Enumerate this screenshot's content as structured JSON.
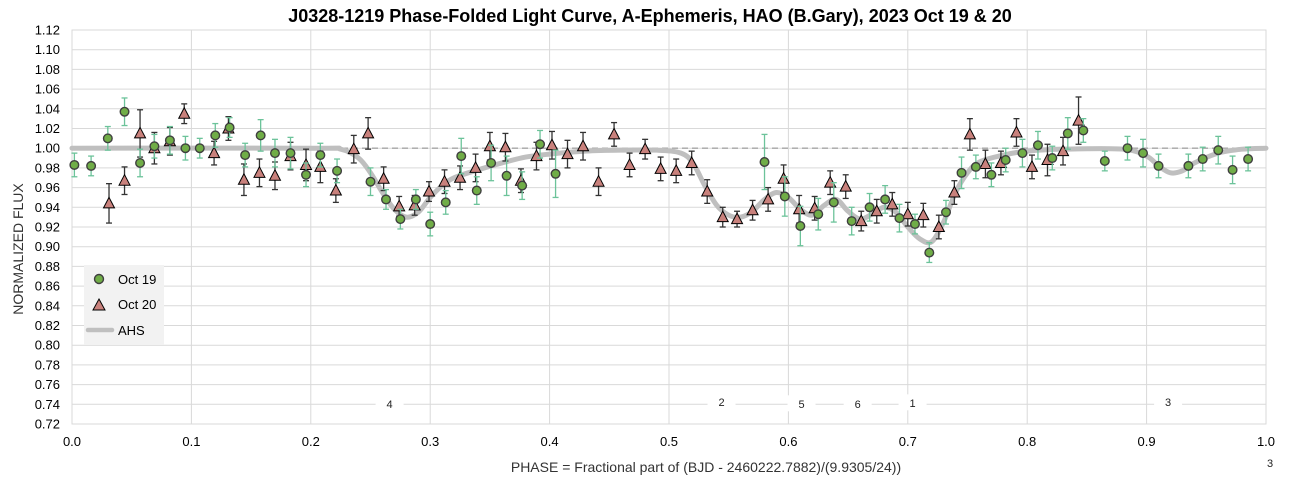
{
  "chart_data": {
    "type": "scatter",
    "title": "J0328-1219 Phase-Folded Light Curve, A-Ephemeris, HAO (B.Gary), 2023 Oct 19 & 20",
    "xlabel": "PHASE = Fractional part of (BJD - 2460222.7882)/(9.9305/24))",
    "ylabel": "NORMALIZED FLUX",
    "xlim": [
      0.0,
      1.0
    ],
    "ylim": [
      0.72,
      1.12
    ],
    "x_ticks": [
      "0.0",
      "0.1",
      "0.2",
      "0.3",
      "0.4",
      "0.5",
      "0.6",
      "0.7",
      "0.8",
      "0.9",
      "1.0"
    ],
    "y_ticks": [
      "0.72",
      "0.74",
      "0.76",
      "0.78",
      "0.80",
      "0.82",
      "0.84",
      "0.86",
      "0.88",
      "0.90",
      "0.92",
      "0.94",
      "0.96",
      "0.98",
      "1.00",
      "1.02",
      "1.04",
      "1.06",
      "1.08",
      "1.10",
      "1.12"
    ],
    "grid": true,
    "reference_line": 1.0,
    "legend_position": "left",
    "colors": {
      "oct19_fill": "#70ad47",
      "oct19_edge": "#3f3f3f",
      "oct19_errorbar": "#6cc39a",
      "oct20_fill": "#c9817c",
      "oct20_edge": "#000000",
      "oct20_errorbar": "#333333",
      "model": "#bfbfbf",
      "reference": "#a6a6a6",
      "grid": "#d9d9d9"
    },
    "series": [
      {
        "name": "Oct 19",
        "marker": "circle",
        "points": [
          {
            "x": 0.002,
            "y": 0.983,
            "err": 0.012
          },
          {
            "x": 0.016,
            "y": 0.982,
            "err": 0.01
          },
          {
            "x": 0.03,
            "y": 1.01,
            "err": 0.012
          },
          {
            "x": 0.044,
            "y": 1.037,
            "err": 0.014
          },
          {
            "x": 0.057,
            "y": 0.985,
            "err": 0.014
          },
          {
            "x": 0.069,
            "y": 1.002,
            "err": 0.012
          },
          {
            "x": 0.082,
            "y": 1.008,
            "err": 0.014
          },
          {
            "x": 0.095,
            "y": 1.0,
            "err": 0.012
          },
          {
            "x": 0.107,
            "y": 1.0,
            "err": 0.01
          },
          {
            "x": 0.12,
            "y": 1.013,
            "err": 0.012
          },
          {
            "x": 0.132,
            "y": 1.021,
            "err": 0.01
          },
          {
            "x": 0.145,
            "y": 0.993,
            "err": 0.012
          },
          {
            "x": 0.158,
            "y": 1.013,
            "err": 0.016
          },
          {
            "x": 0.17,
            "y": 0.995,
            "err": 0.014
          },
          {
            "x": 0.183,
            "y": 0.995,
            "err": 0.016
          },
          {
            "x": 0.196,
            "y": 0.973,
            "err": 0.012
          },
          {
            "x": 0.208,
            "y": 0.993,
            "err": 0.012
          },
          {
            "x": 0.222,
            "y": 0.977,
            "err": 0.012
          },
          {
            "x": 0.25,
            "y": 0.966,
            "err": 0.014
          },
          {
            "x": 0.263,
            "y": 0.948,
            "err": 0.01
          },
          {
            "x": 0.275,
            "y": 0.928,
            "err": 0.01
          },
          {
            "x": 0.288,
            "y": 0.948,
            "err": 0.01
          },
          {
            "x": 0.3,
            "y": 0.923,
            "err": 0.012
          },
          {
            "x": 0.313,
            "y": 0.945,
            "err": 0.012
          },
          {
            "x": 0.326,
            "y": 0.992,
            "err": 0.018
          },
          {
            "x": 0.339,
            "y": 0.957,
            "err": 0.014
          },
          {
            "x": 0.351,
            "y": 0.985,
            "err": 0.018
          },
          {
            "x": 0.364,
            "y": 0.972,
            "err": 0.02
          },
          {
            "x": 0.377,
            "y": 0.962,
            "err": 0.014
          },
          {
            "x": 0.392,
            "y": 1.004,
            "err": 0.014
          },
          {
            "x": 0.405,
            "y": 0.974,
            "err": 0.024
          },
          {
            "x": 0.58,
            "y": 0.986,
            "err": 0.028
          },
          {
            "x": 0.597,
            "y": 0.951,
            "err": 0.02
          },
          {
            "x": 0.61,
            "y": 0.921,
            "err": 0.02
          },
          {
            "x": 0.625,
            "y": 0.933,
            "err": 0.016
          },
          {
            "x": 0.638,
            "y": 0.945,
            "err": 0.02
          },
          {
            "x": 0.653,
            "y": 0.926,
            "err": 0.014
          },
          {
            "x": 0.668,
            "y": 0.94,
            "err": 0.014
          },
          {
            "x": 0.681,
            "y": 0.948,
            "err": 0.014
          },
          {
            "x": 0.693,
            "y": 0.929,
            "err": 0.014
          },
          {
            "x": 0.706,
            "y": 0.923,
            "err": 0.01
          },
          {
            "x": 0.718,
            "y": 0.894,
            "err": 0.01
          },
          {
            "x": 0.732,
            "y": 0.935,
            "err": 0.012
          },
          {
            "x": 0.745,
            "y": 0.975,
            "err": 0.016
          },
          {
            "x": 0.757,
            "y": 0.981,
            "err": 0.012
          },
          {
            "x": 0.77,
            "y": 0.973,
            "err": 0.012
          },
          {
            "x": 0.782,
            "y": 0.988,
            "err": 0.012
          },
          {
            "x": 0.796,
            "y": 0.995,
            "err": 0.014
          },
          {
            "x": 0.809,
            "y": 1.003,
            "err": 0.014
          },
          {
            "x": 0.821,
            "y": 0.99,
            "err": 0.012
          },
          {
            "x": 0.834,
            "y": 1.015,
            "err": 0.016
          },
          {
            "x": 0.847,
            "y": 1.018,
            "err": 0.012
          },
          {
            "x": 0.865,
            "y": 0.987,
            "err": 0.01
          },
          {
            "x": 0.884,
            "y": 1.0,
            "err": 0.012
          },
          {
            "x": 0.897,
            "y": 0.995,
            "err": 0.014
          },
          {
            "x": 0.91,
            "y": 0.982,
            "err": 0.012
          },
          {
            "x": 0.935,
            "y": 0.982,
            "err": 0.012
          },
          {
            "x": 0.947,
            "y": 0.989,
            "err": 0.012
          },
          {
            "x": 0.96,
            "y": 0.998,
            "err": 0.014
          },
          {
            "x": 0.972,
            "y": 0.978,
            "err": 0.014
          },
          {
            "x": 0.985,
            "y": 0.989,
            "err": 0.012
          }
        ]
      },
      {
        "name": "Oct 20",
        "marker": "triangle",
        "points": [
          {
            "x": 0.031,
            "y": 0.944,
            "err": 0.02
          },
          {
            "x": 0.044,
            "y": 0.967,
            "err": 0.014
          },
          {
            "x": 0.057,
            "y": 1.015,
            "err": 0.024
          },
          {
            "x": 0.069,
            "y": 1.0,
            "err": 0.016
          },
          {
            "x": 0.082,
            "y": 1.007,
            "err": 0.014
          },
          {
            "x": 0.094,
            "y": 1.035,
            "err": 0.01
          },
          {
            "x": 0.119,
            "y": 0.995,
            "err": 0.012
          },
          {
            "x": 0.131,
            "y": 1.02,
            "err": 0.012
          },
          {
            "x": 0.144,
            "y": 0.968,
            "err": 0.016
          },
          {
            "x": 0.157,
            "y": 0.975,
            "err": 0.014
          },
          {
            "x": 0.17,
            "y": 0.972,
            "err": 0.014
          },
          {
            "x": 0.183,
            "y": 0.992,
            "err": 0.014
          },
          {
            "x": 0.196,
            "y": 0.983,
            "err": 0.016
          },
          {
            "x": 0.208,
            "y": 0.981,
            "err": 0.016
          },
          {
            "x": 0.221,
            "y": 0.957,
            "err": 0.012
          },
          {
            "x": 0.236,
            "y": 0.999,
            "err": 0.014
          },
          {
            "x": 0.248,
            "y": 1.015,
            "err": 0.016
          },
          {
            "x": 0.261,
            "y": 0.969,
            "err": 0.012
          },
          {
            "x": 0.274,
            "y": 0.941,
            "err": 0.01
          },
          {
            "x": 0.287,
            "y": 0.942,
            "err": 0.01
          },
          {
            "x": 0.299,
            "y": 0.956,
            "err": 0.01
          },
          {
            "x": 0.312,
            "y": 0.966,
            "err": 0.012
          },
          {
            "x": 0.325,
            "y": 0.97,
            "err": 0.012
          },
          {
            "x": 0.338,
            "y": 0.98,
            "err": 0.014
          },
          {
            "x": 0.35,
            "y": 1.002,
            "err": 0.014
          },
          {
            "x": 0.363,
            "y": 1.001,
            "err": 0.014
          },
          {
            "x": 0.376,
            "y": 0.967,
            "err": 0.012
          },
          {
            "x": 0.389,
            "y": 0.992,
            "err": 0.014
          },
          {
            "x": 0.402,
            "y": 1.003,
            "err": 0.014
          },
          {
            "x": 0.415,
            "y": 0.994,
            "err": 0.014
          },
          {
            "x": 0.428,
            "y": 1.002,
            "err": 0.014
          },
          {
            "x": 0.441,
            "y": 0.966,
            "err": 0.014
          },
          {
            "x": 0.454,
            "y": 1.014,
            "err": 0.012
          },
          {
            "x": 0.467,
            "y": 0.983,
            "err": 0.012
          },
          {
            "x": 0.48,
            "y": 0.999,
            "err": 0.01
          },
          {
            "x": 0.493,
            "y": 0.979,
            "err": 0.012
          },
          {
            "x": 0.506,
            "y": 0.977,
            "err": 0.012
          },
          {
            "x": 0.519,
            "y": 0.985,
            "err": 0.012
          },
          {
            "x": 0.532,
            "y": 0.956,
            "err": 0.012
          },
          {
            "x": 0.545,
            "y": 0.93,
            "err": 0.01
          },
          {
            "x": 0.557,
            "y": 0.928,
            "err": 0.008
          },
          {
            "x": 0.57,
            "y": 0.937,
            "err": 0.01
          },
          {
            "x": 0.583,
            "y": 0.948,
            "err": 0.012
          },
          {
            "x": 0.596,
            "y": 0.969,
            "err": 0.014
          },
          {
            "x": 0.609,
            "y": 0.938,
            "err": 0.014
          },
          {
            "x": 0.622,
            "y": 0.939,
            "err": 0.012
          },
          {
            "x": 0.635,
            "y": 0.965,
            "err": 0.012
          },
          {
            "x": 0.648,
            "y": 0.961,
            "err": 0.012
          },
          {
            "x": 0.661,
            "y": 0.926,
            "err": 0.01
          },
          {
            "x": 0.674,
            "y": 0.936,
            "err": 0.012
          },
          {
            "x": 0.687,
            "y": 0.943,
            "err": 0.012
          },
          {
            "x": 0.7,
            "y": 0.933,
            "err": 0.012
          },
          {
            "x": 0.713,
            "y": 0.932,
            "err": 0.012
          },
          {
            "x": 0.726,
            "y": 0.92,
            "err": 0.012
          },
          {
            "x": 0.739,
            "y": 0.955,
            "err": 0.012
          },
          {
            "x": 0.752,
            "y": 1.014,
            "err": 0.016
          },
          {
            "x": 0.765,
            "y": 0.984,
            "err": 0.014
          },
          {
            "x": 0.778,
            "y": 0.985,
            "err": 0.012
          },
          {
            "x": 0.791,
            "y": 1.016,
            "err": 0.014
          },
          {
            "x": 0.804,
            "y": 0.981,
            "err": 0.012
          },
          {
            "x": 0.817,
            "y": 0.988,
            "err": 0.016
          },
          {
            "x": 0.83,
            "y": 0.997,
            "err": 0.014
          },
          {
            "x": 0.843,
            "y": 1.028,
            "err": 0.024
          }
        ]
      },
      {
        "name": "AHS",
        "marker": "line",
        "points": [
          {
            "x": 0.0,
            "y": 1.0
          },
          {
            "x": 0.2,
            "y": 1.0
          },
          {
            "x": 0.225,
            "y": 0.999
          },
          {
            "x": 0.24,
            "y": 0.99
          },
          {
            "x": 0.25,
            "y": 0.975
          },
          {
            "x": 0.26,
            "y": 0.955
          },
          {
            "x": 0.27,
            "y": 0.938
          },
          {
            "x": 0.28,
            "y": 0.93
          },
          {
            "x": 0.29,
            "y": 0.935
          },
          {
            "x": 0.3,
            "y": 0.95
          },
          {
            "x": 0.31,
            "y": 0.962
          },
          {
            "x": 0.32,
            "y": 0.97
          },
          {
            "x": 0.34,
            "y": 0.978
          },
          {
            "x": 0.36,
            "y": 0.985
          },
          {
            "x": 0.38,
            "y": 0.991
          },
          {
            "x": 0.4,
            "y": 0.994
          },
          {
            "x": 0.43,
            "y": 0.997
          },
          {
            "x": 0.46,
            "y": 0.998
          },
          {
            "x": 0.49,
            "y": 0.998
          },
          {
            "x": 0.51,
            "y": 0.995
          },
          {
            "x": 0.52,
            "y": 0.985
          },
          {
            "x": 0.53,
            "y": 0.962
          },
          {
            "x": 0.54,
            "y": 0.942
          },
          {
            "x": 0.55,
            "y": 0.932
          },
          {
            "x": 0.56,
            "y": 0.93
          },
          {
            "x": 0.57,
            "y": 0.936
          },
          {
            "x": 0.58,
            "y": 0.948
          },
          {
            "x": 0.59,
            "y": 0.955
          },
          {
            "x": 0.6,
            "y": 0.95
          },
          {
            "x": 0.61,
            "y": 0.938
          },
          {
            "x": 0.62,
            "y": 0.932
          },
          {
            "x": 0.63,
            "y": 0.942
          },
          {
            "x": 0.64,
            "y": 0.948
          },
          {
            "x": 0.65,
            "y": 0.936
          },
          {
            "x": 0.66,
            "y": 0.928
          },
          {
            "x": 0.67,
            "y": 0.933
          },
          {
            "x": 0.68,
            "y": 0.94
          },
          {
            "x": 0.69,
            "y": 0.935
          },
          {
            "x": 0.7,
            "y": 0.92
          },
          {
            "x": 0.71,
            "y": 0.908
          },
          {
            "x": 0.72,
            "y": 0.905
          },
          {
            "x": 0.73,
            "y": 0.925
          },
          {
            "x": 0.74,
            "y": 0.955
          },
          {
            "x": 0.75,
            "y": 0.975
          },
          {
            "x": 0.76,
            "y": 0.986
          },
          {
            "x": 0.78,
            "y": 0.993
          },
          {
            "x": 0.8,
            "y": 0.997
          },
          {
            "x": 0.83,
            "y": 0.999
          },
          {
            "x": 0.88,
            "y": 0.999
          },
          {
            "x": 0.9,
            "y": 0.992
          },
          {
            "x": 0.91,
            "y": 0.982
          },
          {
            "x": 0.92,
            "y": 0.975
          },
          {
            "x": 0.93,
            "y": 0.977
          },
          {
            "x": 0.94,
            "y": 0.985
          },
          {
            "x": 0.96,
            "y": 0.995
          },
          {
            "x": 0.98,
            "y": 0.999
          },
          {
            "x": 1.0,
            "y": 1.0
          }
        ]
      }
    ],
    "annotations": [
      {
        "text": "4",
        "x": 0.266,
        "y": 0.74
      },
      {
        "text": "2",
        "x": 0.544,
        "y": 0.742
      },
      {
        "text": "5",
        "x": 0.611,
        "y": 0.74
      },
      {
        "text": "6",
        "x": 0.658,
        "y": 0.74
      },
      {
        "text": "1",
        "x": 0.704,
        "y": 0.741
      },
      {
        "text": "3",
        "x": 0.918,
        "y": 0.742
      }
    ],
    "corner_note": "3"
  }
}
